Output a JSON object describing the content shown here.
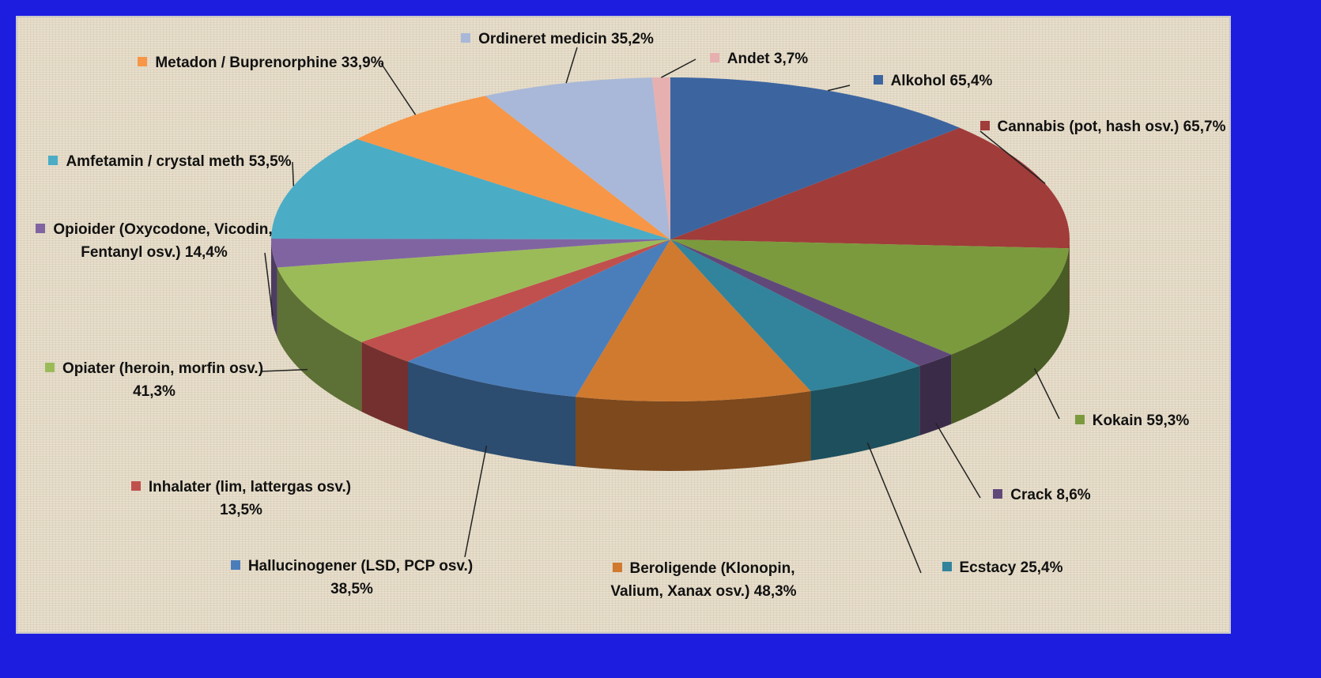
{
  "chart_data": {
    "type": "pie3d",
    "categories": [
      "Alkohol",
      "Cannabis (pot, hash osv.)",
      "Kokain",
      "Crack",
      "Ecstacy",
      "Beroligende (Klonopin, Valium, Xanax osv.)",
      "Hallucinogener (LSD, PCP osv.)",
      "Inhalater (lim, lattergas osv.)",
      "Opiater (heroin, morfin osv.)",
      "Opioider (Oxycodone, Vicodin, Fentanyl osv.)",
      "Amfetamin / crystal meth",
      "Metadon / Buprenorphine",
      "Ordineret medicin",
      "Andet"
    ],
    "values": [
      65.4,
      65.7,
      59.3,
      8.6,
      25.4,
      48.3,
      38.5,
      13.5,
      41.3,
      14.4,
      53.5,
      33.9,
      35.2,
      3.7
    ],
    "value_labels": [
      "65,4%",
      "65,7%",
      "59,3%",
      "8,6%",
      "25,4%",
      "48,3%",
      "38,5%",
      "13,5%",
      "41,3%",
      "14,4%",
      "53,5%",
      "33,9%",
      "35,2%",
      "3,7%"
    ],
    "colors": [
      "#3c65a0",
      "#a03c3a",
      "#7b9a3d",
      "#60497a",
      "#31849b",
      "#d07a30",
      "#4a7ebb",
      "#c0504d",
      "#9bbb59",
      "#8064a2",
      "#4bacc6",
      "#f79646",
      "#a9b8d8",
      "#e6b0b0"
    ]
  }
}
